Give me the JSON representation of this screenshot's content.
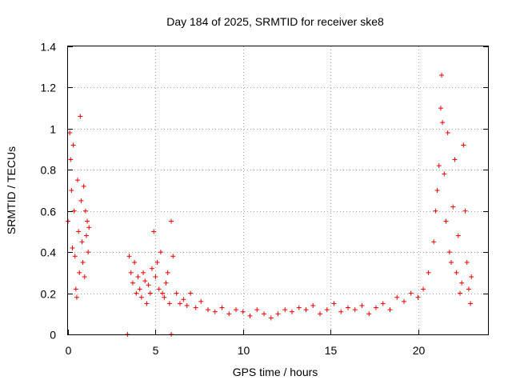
{
  "chart_data": {
    "type": "scatter",
    "title": "Day 184 of 2025, SRMTID for receiver ske8",
    "xlabel": "GPS time / hours",
    "ylabel": "SRMTID / TECUs",
    "xlim": [
      0,
      24
    ],
    "ylim": [
      0,
      1.4
    ],
    "xticks": [
      0,
      5,
      10,
      15,
      20
    ],
    "yticks": [
      0,
      0.2,
      0.4,
      0.6,
      0.8,
      1,
      1.2,
      1.4
    ],
    "xtick_labels": [
      "0",
      "5",
      "10",
      "15",
      "20"
    ],
    "ytick_labels": [
      "0",
      "0.2",
      "0.4",
      "0.6",
      "0.8",
      "1",
      "1.2",
      "1.4"
    ],
    "grid": true,
    "marker": "+",
    "series": [
      {
        "name": "SRMTID",
        "color": "#ee0000",
        "x": [
          0.0,
          0.1,
          0.15,
          0.2,
          0.25,
          0.3,
          0.35,
          0.4,
          0.45,
          0.5,
          0.55,
          0.6,
          0.65,
          0.7,
          0.75,
          0.8,
          0.85,
          0.9,
          0.95,
          1.0,
          1.05,
          1.1,
          1.15,
          1.2,
          3.4,
          5.9,
          3.5,
          3.6,
          3.7,
          3.8,
          3.9,
          4.0,
          4.1,
          4.2,
          4.3,
          4.4,
          4.5,
          4.6,
          4.7,
          4.8,
          4.9,
          5.0,
          5.1,
          5.2,
          5.3,
          5.4,
          5.5,
          5.6,
          5.7,
          5.8,
          5.9,
          6.0,
          6.2,
          6.4,
          6.6,
          6.8,
          7.0,
          7.3,
          7.6,
          8.0,
          8.4,
          8.8,
          9.2,
          9.6,
          10.0,
          10.4,
          10.8,
          11.2,
          11.6,
          12.0,
          12.4,
          12.8,
          13.2,
          13.6,
          14.0,
          14.4,
          14.8,
          15.2,
          15.6,
          16.0,
          16.4,
          16.8,
          17.2,
          17.6,
          18.0,
          18.4,
          18.8,
          19.2,
          19.6,
          20.0,
          20.3,
          20.6,
          20.9,
          21.0,
          21.1,
          21.2,
          21.3,
          21.35,
          21.4,
          21.5,
          21.6,
          21.7,
          21.8,
          21.9,
          22.0,
          22.1,
          22.2,
          22.3,
          22.4,
          22.5,
          22.6,
          22.7,
          22.8,
          22.9,
          23.0,
          23.05
        ],
        "y": [
          0.55,
          0.98,
          0.85,
          0.7,
          0.42,
          0.92,
          0.6,
          0.38,
          0.22,
          0.18,
          0.75,
          0.5,
          0.3,
          1.06,
          0.65,
          0.45,
          0.35,
          0.72,
          0.28,
          0.6,
          0.48,
          0.55,
          0.4,
          0.52,
          0.0,
          0.0,
          0.38,
          0.3,
          0.25,
          0.35,
          0.2,
          0.28,
          0.22,
          0.18,
          0.3,
          0.26,
          0.15,
          0.24,
          0.2,
          0.32,
          0.5,
          0.28,
          0.35,
          0.22,
          0.4,
          0.2,
          0.18,
          0.25,
          0.3,
          0.15,
          0.55,
          0.38,
          0.2,
          0.15,
          0.17,
          0.14,
          0.2,
          0.13,
          0.16,
          0.12,
          0.11,
          0.13,
          0.1,
          0.12,
          0.11,
          0.09,
          0.12,
          0.1,
          0.08,
          0.1,
          0.12,
          0.11,
          0.13,
          0.12,
          0.14,
          0.1,
          0.12,
          0.15,
          0.11,
          0.13,
          0.12,
          0.14,
          0.1,
          0.13,
          0.15,
          0.12,
          0.18,
          0.16,
          0.2,
          0.18,
          0.22,
          0.3,
          0.45,
          0.6,
          0.7,
          0.82,
          1.1,
          1.26,
          1.03,
          0.78,
          0.55,
          0.98,
          0.4,
          0.35,
          0.62,
          0.85,
          0.3,
          0.48,
          0.2,
          0.25,
          0.92,
          0.6,
          0.35,
          0.22,
          0.15,
          0.28
        ]
      }
    ]
  }
}
